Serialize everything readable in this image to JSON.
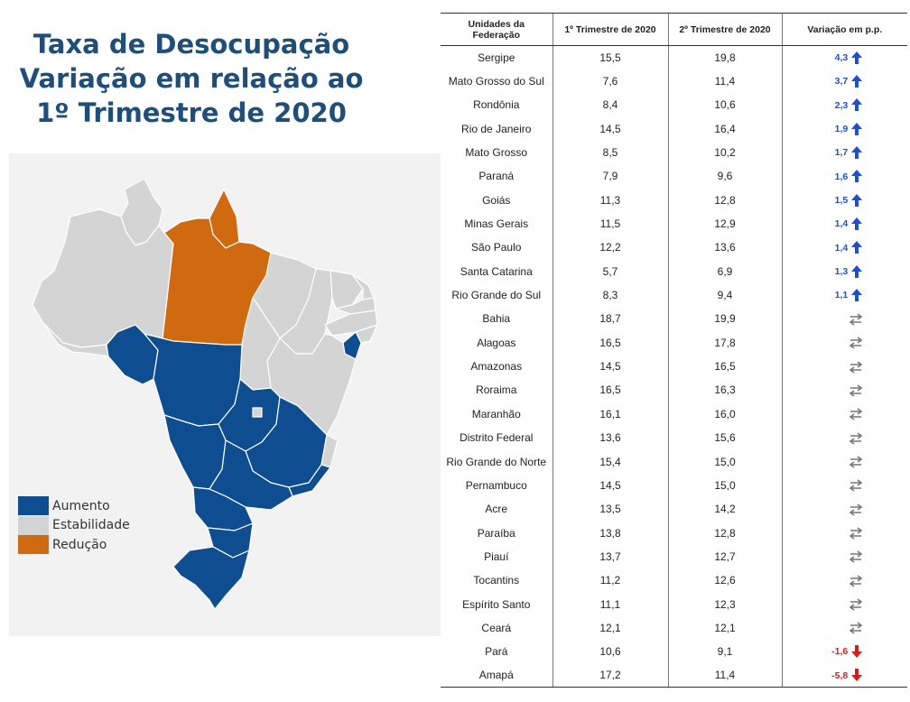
{
  "title": {
    "line1": "Taxa de Desocupação",
    "line2": "Variação em relação ao",
    "line3": "1º Trimestre de 2020"
  },
  "colors": {
    "aumento": "#0e4d8f",
    "estabilidade": "#d4d4d4",
    "reducao": "#d06a10",
    "up_text": "#1f4fd1",
    "down_text": "#d21e1e"
  },
  "legend": [
    {
      "label": "Aumento",
      "color": "#0e4d8f"
    },
    {
      "label": "Estabilidade",
      "color": "#d4d4d4"
    },
    {
      "label": "Redução",
      "color": "#d06a10"
    }
  ],
  "table": {
    "headers": {
      "uf": "Unidades da Federação",
      "t1": "1º Trimestre de 2020",
      "t2": "2º Trimestre de 2020",
      "var": "Variação em p.p."
    },
    "rows": [
      {
        "uf": "Sergipe",
        "t1": "15,5",
        "t2": "19,8",
        "var": "4,3",
        "trend": "up"
      },
      {
        "uf": "Mato Grosso do Sul",
        "t1": "7,6",
        "t2": "11,4",
        "var": "3,7",
        "trend": "up"
      },
      {
        "uf": "Rondônia",
        "t1": "8,4",
        "t2": "10,6",
        "var": "2,3",
        "trend": "up"
      },
      {
        "uf": "Rio de Janeiro",
        "t1": "14,5",
        "t2": "16,4",
        "var": "1,9",
        "trend": "up"
      },
      {
        "uf": "Mato Grosso",
        "t1": "8,5",
        "t2": "10,2",
        "var": "1,7",
        "trend": "up"
      },
      {
        "uf": "Paraná",
        "t1": "7,9",
        "t2": "9,6",
        "var": "1,6",
        "trend": "up"
      },
      {
        "uf": "Goiás",
        "t1": "11,3",
        "t2": "12,8",
        "var": "1,5",
        "trend": "up"
      },
      {
        "uf": "Minas Gerais",
        "t1": "11,5",
        "t2": "12,9",
        "var": "1,4",
        "trend": "up"
      },
      {
        "uf": "São Paulo",
        "t1": "12,2",
        "t2": "13,6",
        "var": "1,4",
        "trend": "up"
      },
      {
        "uf": "Santa Catarina",
        "t1": "5,7",
        "t2": "6,9",
        "var": "1,3",
        "trend": "up"
      },
      {
        "uf": "Rio Grande do Sul",
        "t1": "8,3",
        "t2": "9,4",
        "var": "1,1",
        "trend": "up"
      },
      {
        "uf": "Bahia",
        "t1": "18,7",
        "t2": "19,9",
        "var": "",
        "trend": "stable"
      },
      {
        "uf": "Alagoas",
        "t1": "16,5",
        "t2": "17,8",
        "var": "",
        "trend": "stable"
      },
      {
        "uf": "Amazonas",
        "t1": "14,5",
        "t2": "16,5",
        "var": "",
        "trend": "stable"
      },
      {
        "uf": "Roraima",
        "t1": "16,5",
        "t2": "16,3",
        "var": "",
        "trend": "stable"
      },
      {
        "uf": "Maranhão",
        "t1": "16,1",
        "t2": "16,0",
        "var": "",
        "trend": "stable"
      },
      {
        "uf": "Distrito Federal",
        "t1": "13,6",
        "t2": "15,6",
        "var": "",
        "trend": "stable"
      },
      {
        "uf": "Rio Grande do Norte",
        "t1": "15,4",
        "t2": "15,0",
        "var": "",
        "trend": "stable"
      },
      {
        "uf": "Pernambuco",
        "t1": "14,5",
        "t2": "15,0",
        "var": "",
        "trend": "stable"
      },
      {
        "uf": "Acre",
        "t1": "13,5",
        "t2": "14,2",
        "var": "",
        "trend": "stable"
      },
      {
        "uf": "Paraíba",
        "t1": "13,8",
        "t2": "12,8",
        "var": "",
        "trend": "stable"
      },
      {
        "uf": "Piauí",
        "t1": "13,7",
        "t2": "12,7",
        "var": "",
        "trend": "stable"
      },
      {
        "uf": "Tocantins",
        "t1": "11,2",
        "t2": "12,6",
        "var": "",
        "trend": "stable"
      },
      {
        "uf": "Espírito Santo",
        "t1": "11,1",
        "t2": "12,3",
        "var": "",
        "trend": "stable"
      },
      {
        "uf": "Ceará",
        "t1": "12,1",
        "t2": "12,1",
        "var": "",
        "trend": "stable"
      },
      {
        "uf": "Pará",
        "t1": "10,6",
        "t2": "9,1",
        "var": "-1,6",
        "trend": "down"
      },
      {
        "uf": "Amapá",
        "t1": "17,2",
        "t2": "11,4",
        "var": "-5,8",
        "trend": "down"
      }
    ]
  }
}
